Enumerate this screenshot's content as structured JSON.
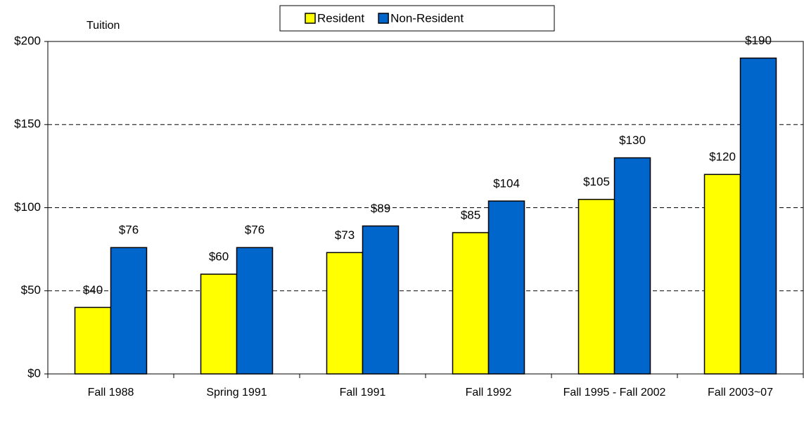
{
  "chart_data": {
    "type": "bar",
    "y_label": "Tuition",
    "categories": [
      "Fall 1988",
      "Spring 1991",
      "Fall 1991",
      "Fall 1992",
      "Fall 1995 - Fall 2002",
      "Fall 2003~07"
    ],
    "series": [
      {
        "name": "Resident",
        "color": "#ffff00",
        "values": [
          40,
          60,
          73,
          85,
          105,
          120
        ],
        "value_labels": [
          "$40",
          "$60",
          "$73",
          "$85",
          "$105",
          "$120"
        ]
      },
      {
        "name": "Non-Resident",
        "color": "#0066cc",
        "values": [
          76,
          76,
          89,
          104,
          130,
          190
        ],
        "value_labels": [
          "$76",
          "$76",
          "$89",
          "$104",
          "$130",
          "$190"
        ]
      }
    ],
    "ylim": [
      0,
      200
    ],
    "yticks": [
      {
        "value": 0,
        "label": "$0"
      },
      {
        "value": 50,
        "label": "$50"
      },
      {
        "value": 100,
        "label": "$100"
      },
      {
        "value": 150,
        "label": "$150"
      },
      {
        "value": 200,
        "label": "$200"
      }
    ],
    "grid": true,
    "legend": "top"
  }
}
